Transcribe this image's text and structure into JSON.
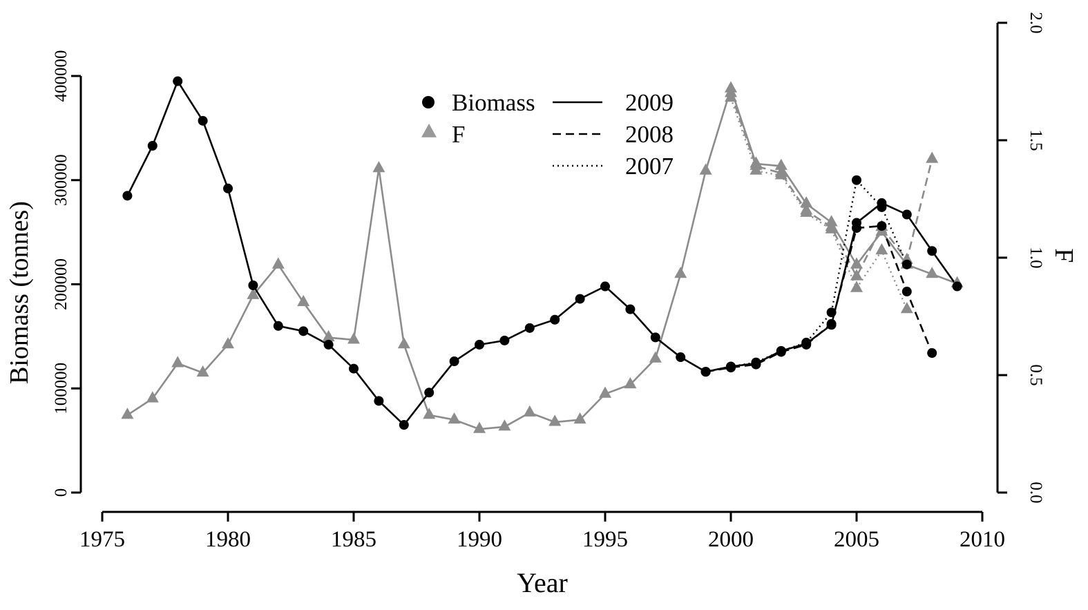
{
  "chart_data": {
    "type": "line",
    "xlabel": "Year",
    "ylabel_left": "Biomass (tonnes)",
    "ylabel_right": "F",
    "xlim": [
      1975,
      2010
    ],
    "ylim_left": [
      0,
      400000
    ],
    "ylim_right": [
      0.0,
      2.0
    ],
    "x_ticks": [
      "1975",
      "1980",
      "1985",
      "1990",
      "1995",
      "2000",
      "2005",
      "2010"
    ],
    "y_left_ticks": [
      "0",
      "100000",
      "200000",
      "300000",
      "400000"
    ],
    "y_right_ticks": [
      "0.0",
      "0.5",
      "1.0",
      "1.5",
      "2.0"
    ],
    "grid": false,
    "legend": {
      "placement": "top-center",
      "symbols": [
        {
          "label": "Biomass",
          "marker": "circle",
          "color": "#000000"
        },
        {
          "label": "F",
          "marker": "triangle",
          "color": "#999999"
        }
      ],
      "lines": [
        {
          "label": "2009",
          "style": "solid"
        },
        {
          "label": "2008",
          "style": "dashed"
        },
        {
          "label": "2007",
          "style": "dotted"
        }
      ]
    },
    "series": [
      {
        "name": "Biomass",
        "assessment": "2009",
        "axis": "left",
        "marker": "circle",
        "color": "#000000",
        "style": "solid",
        "x": [
          1976,
          1977,
          1978,
          1979,
          1980,
          1981,
          1982,
          1983,
          1984,
          1985,
          1986,
          1987,
          1988,
          1989,
          1990,
          1991,
          1992,
          1993,
          1994,
          1995,
          1996,
          1997,
          1998,
          1999,
          2000,
          2001,
          2002,
          2003,
          2004,
          2005,
          2006,
          2007,
          2008,
          2009
        ],
        "values": [
          285000,
          333000,
          395000,
          357000,
          292000,
          199000,
          160000,
          155000,
          142000,
          119000,
          88000,
          65000,
          96000,
          126000,
          142000,
          146000,
          158000,
          166000,
          186000,
          198000,
          176000,
          149000,
          130000,
          116000,
          121000,
          124000,
          136000,
          143000,
          161000,
          259000,
          278000,
          267000,
          232000,
          198000
        ]
      },
      {
        "name": "Biomass",
        "assessment": "2008",
        "axis": "left",
        "marker": "circle",
        "color": "#000000",
        "style": "dashed",
        "x": [
          1999,
          2000,
          2001,
          2002,
          2003,
          2004,
          2005,
          2006,
          2007,
          2008
        ],
        "values": [
          116000,
          120000,
          123000,
          135000,
          142000,
          162000,
          254000,
          256000,
          193000,
          134000
        ]
      },
      {
        "name": "Biomass",
        "assessment": "2007",
        "axis": "left",
        "marker": "circle",
        "color": "#000000",
        "style": "dotted",
        "x": [
          1999,
          2000,
          2001,
          2002,
          2003,
          2004,
          2005,
          2006,
          2007
        ],
        "values": [
          116000,
          121000,
          125000,
          136000,
          144000,
          173000,
          300000,
          274000,
          219000
        ]
      },
      {
        "name": "F",
        "assessment": "2009",
        "axis": "right",
        "marker": "triangle",
        "color": "#8c8c8c",
        "style": "solid",
        "x": [
          1976,
          1977,
          1978,
          1979,
          1980,
          1981,
          1982,
          1983,
          1984,
          1985,
          1986,
          1987,
          1988,
          1989,
          1990,
          1991,
          1992,
          1993,
          1994,
          1995,
          1996,
          1997,
          1998,
          1999,
          2000,
          2001,
          2002,
          2003,
          2004,
          2005,
          2006,
          2007,
          2008,
          2009
        ],
        "values": [
          0.33,
          0.4,
          0.55,
          0.51,
          0.63,
          0.84,
          0.97,
          0.81,
          0.66,
          0.65,
          1.38,
          0.63,
          0.33,
          0.31,
          0.27,
          0.28,
          0.34,
          0.3,
          0.31,
          0.42,
          0.46,
          0.57,
          0.93,
          1.37,
          1.72,
          1.4,
          1.39,
          1.23,
          1.15,
          0.97,
          1.11,
          0.97,
          0.93,
          0.89
        ]
      },
      {
        "name": "F",
        "assessment": "2008",
        "axis": "right",
        "marker": "triangle",
        "color": "#8c8c8c",
        "style": "dashed",
        "x": [
          2000,
          2001,
          2002,
          2003,
          2004,
          2005,
          2006,
          2007,
          2008
        ],
        "values": [
          1.7,
          1.39,
          1.36,
          1.2,
          1.13,
          0.92,
          1.13,
          0.99,
          1.42
        ]
      },
      {
        "name": "F",
        "assessment": "2007",
        "axis": "right",
        "marker": "triangle",
        "color": "#8c8c8c",
        "style": "dotted",
        "x": [
          2000,
          2001,
          2002,
          2003,
          2004,
          2005,
          2006,
          2007
        ],
        "values": [
          1.68,
          1.37,
          1.35,
          1.19,
          1.12,
          0.87,
          1.03,
          0.78
        ]
      }
    ]
  }
}
